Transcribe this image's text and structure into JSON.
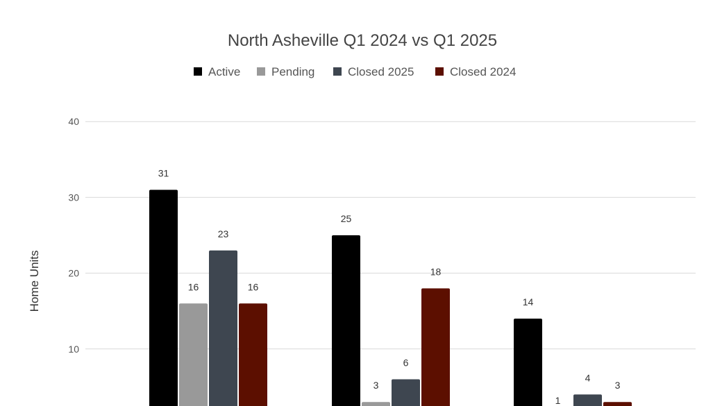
{
  "chart_data": {
    "type": "bar",
    "title": "North Asheville Q1 2024 vs Q1 2025",
    "ylabel": "Home Units",
    "xlabel": "",
    "ylim": [
      0,
      40
    ],
    "yticks": [
      "10",
      "20",
      "30",
      "40"
    ],
    "categories": [
      "",
      "",
      ""
    ],
    "legend": "top",
    "grid": true,
    "series": [
      {
        "name": "Active",
        "color": "#000000",
        "values": [
          31,
          25,
          14
        ],
        "labels": [
          "31",
          "25",
          "14"
        ]
      },
      {
        "name": "Pending",
        "color": "#999999",
        "values": [
          16,
          3,
          1
        ],
        "labels": [
          "16",
          "3",
          "1"
        ]
      },
      {
        "name": "Closed 2025",
        "color": "#3e4650",
        "values": [
          23,
          6,
          4
        ],
        "labels": [
          "23",
          "6",
          "4"
        ]
      },
      {
        "name": "Closed 2024",
        "color": "#5c0f00",
        "values": [
          16,
          18,
          3
        ],
        "labels": [
          "16",
          "18",
          "3"
        ]
      }
    ]
  }
}
